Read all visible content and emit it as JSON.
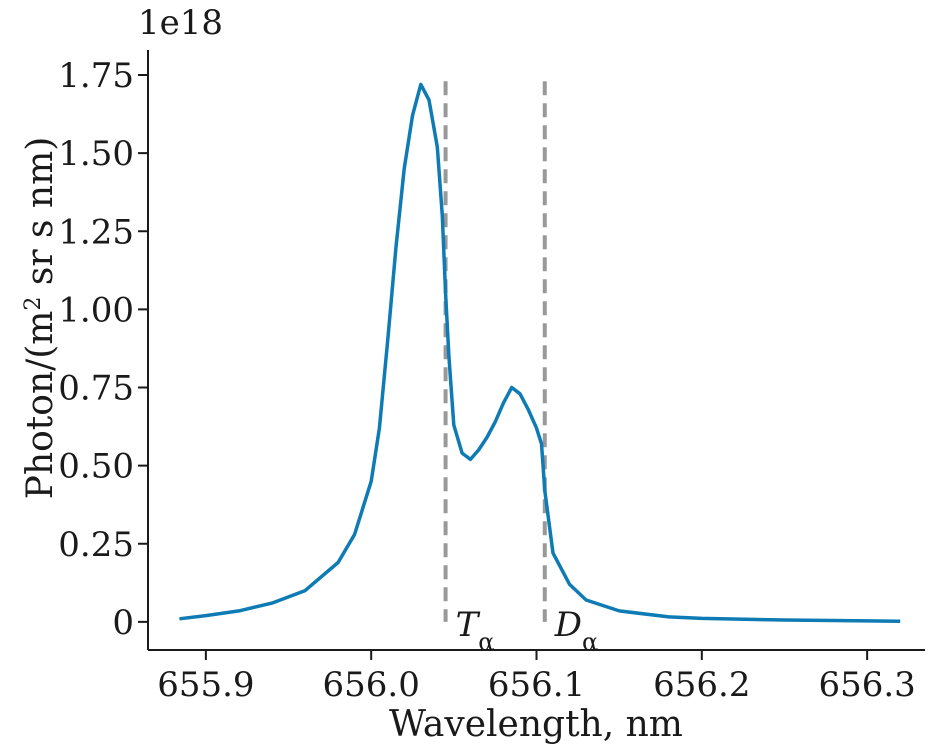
{
  "chart_data": {
    "type": "line",
    "title": "",
    "xlabel": "Wavelength, nm",
    "ylabel_main": "Photon/(m",
    "ylabel_sup": "2",
    "ylabel_rest": " sr s nm)",
    "y_scale_label": "1e18",
    "xlim": [
      655.865,
      656.335
    ],
    "ylim": [
      -0.09,
      1.83
    ],
    "x_ticks": [
      655.9,
      656.0,
      656.1,
      656.2,
      656.3
    ],
    "x_tick_labels": [
      "655.9",
      "656.0",
      "656.1",
      "656.2",
      "656.3"
    ],
    "y_ticks": [
      0,
      0.25,
      0.5,
      0.75,
      1.0,
      1.25,
      1.5,
      1.75
    ],
    "y_tick_labels": [
      "0",
      "0.25",
      "0.50",
      "0.75",
      "1.00",
      "1.25",
      "1.50",
      "1.75"
    ],
    "grid": false,
    "series": [
      {
        "color": "#0e7bb5",
        "x": [
          655.884,
          655.9,
          655.92,
          655.94,
          655.96,
          655.98,
          655.99,
          656.0,
          656.005,
          656.01,
          656.015,
          656.02,
          656.025,
          656.03,
          656.035,
          656.04,
          656.043,
          656.045,
          656.047,
          656.05,
          656.055,
          656.06,
          656.065,
          656.07,
          656.075,
          656.08,
          656.085,
          656.09,
          656.095,
          656.1,
          656.103,
          656.105,
          656.11,
          656.12,
          656.13,
          656.15,
          656.18,
          656.2,
          656.25,
          656.3,
          656.32
        ],
        "y": [
          0.01,
          0.02,
          0.035,
          0.06,
          0.1,
          0.19,
          0.28,
          0.45,
          0.62,
          0.9,
          1.2,
          1.45,
          1.62,
          1.72,
          1.67,
          1.52,
          1.3,
          1.05,
          0.85,
          0.63,
          0.54,
          0.52,
          0.55,
          0.59,
          0.64,
          0.7,
          0.75,
          0.73,
          0.68,
          0.62,
          0.57,
          0.42,
          0.22,
          0.12,
          0.07,
          0.035,
          0.016,
          0.011,
          0.006,
          0.003,
          0.002
        ]
      }
    ],
    "markers": [
      {
        "x": 656.045,
        "label": "T",
        "sub": "α",
        "color": "#999999"
      },
      {
        "x": 656.105,
        "label": "D",
        "sub": "α",
        "color": "#999999"
      }
    ]
  }
}
